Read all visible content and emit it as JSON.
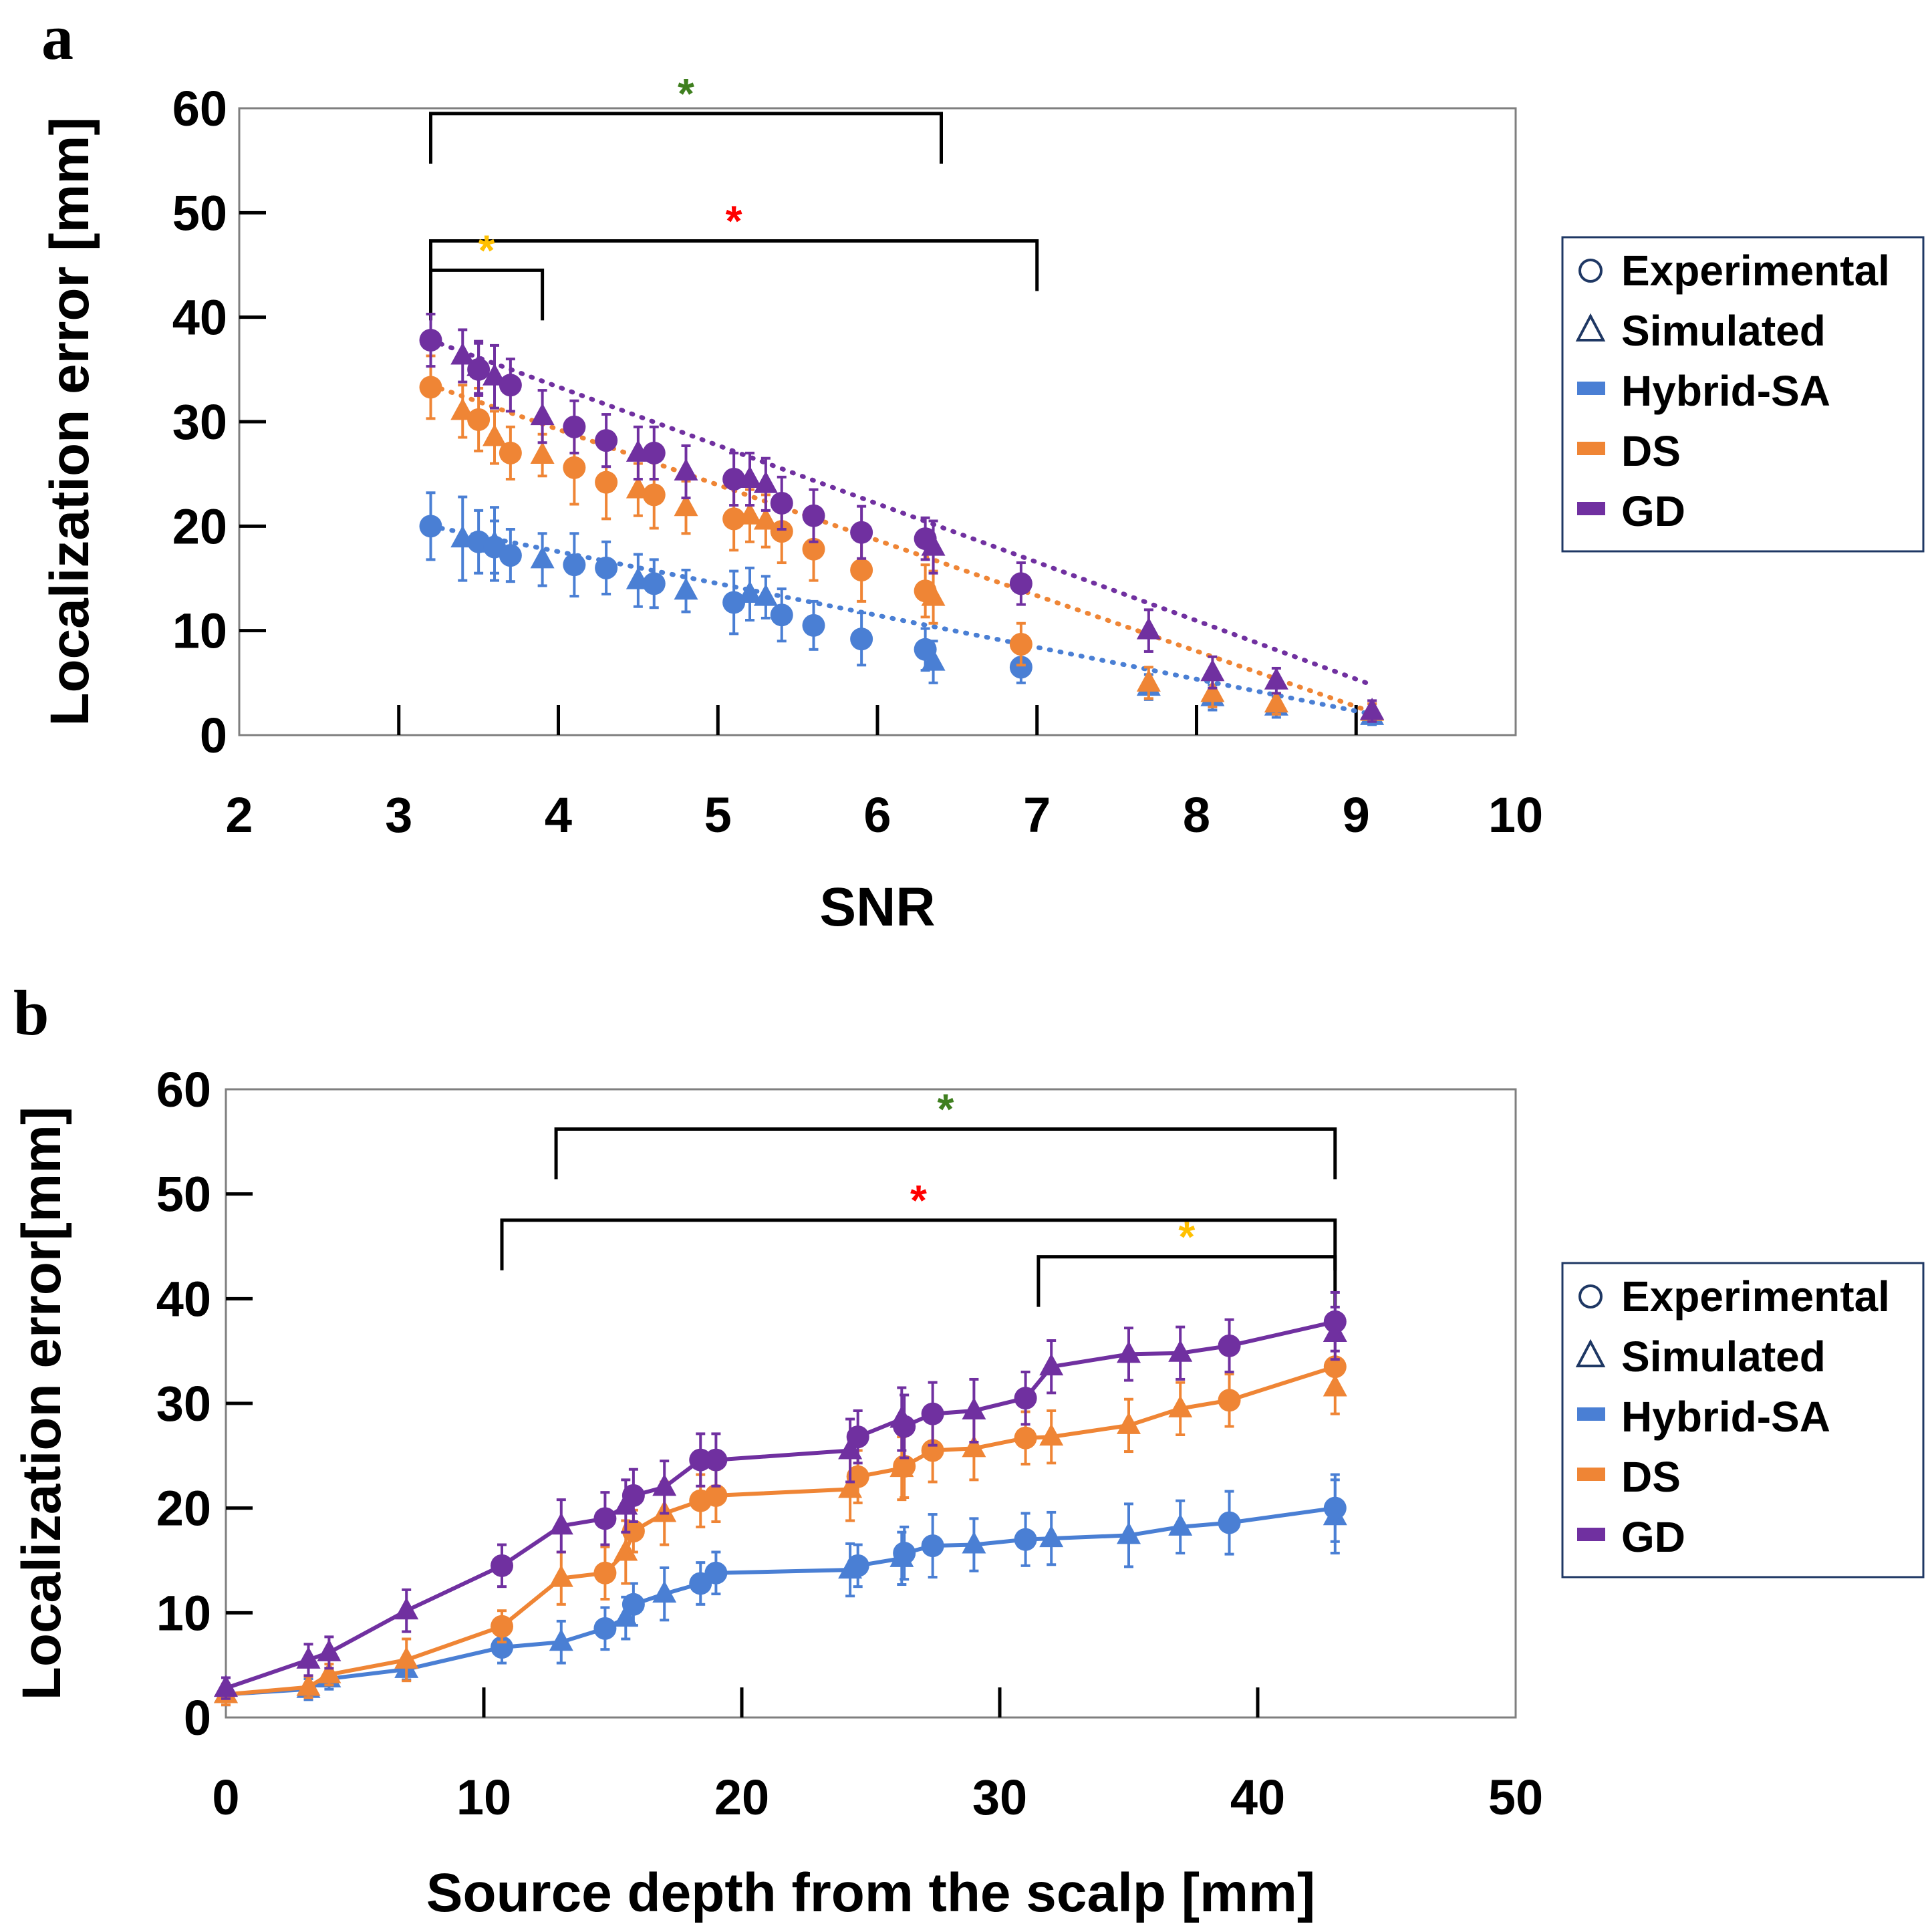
{
  "colors": {
    "hybrid": "#4a7fd4",
    "ds": "#ef8535",
    "gd": "#7030a0",
    "green_star": "#3f7f1f",
    "red_star": "#ff0000",
    "yellow_star": "#ffc000"
  },
  "legend": {
    "experimental": "Experimental",
    "simulated": "Simulated",
    "hybrid": "Hybrid-SA",
    "ds": "DS",
    "gd": "GD",
    "circle_glyph": "○",
    "triangle_glyph": "△"
  },
  "chart_data": [
    {
      "panel": "a",
      "type": "scatter",
      "xlabel": "SNR",
      "ylabel": "Localization error [mm]",
      "xlim": [
        2,
        10
      ],
      "ylim": [
        0,
        60
      ],
      "xticks": [
        "2",
        "3",
        "4",
        "5",
        "6",
        "7",
        "8",
        "9",
        "10"
      ],
      "yticks": [
        "0",
        "10",
        "20",
        "30",
        "40",
        "50",
        "60"
      ],
      "connector": "dotted",
      "significance": [
        {
          "x1": 3.2,
          "x2": 6.4,
          "y": 59.5,
          "label": "*",
          "color": "green"
        },
        {
          "x1": 3.2,
          "x2": 7.0,
          "y": 47.3,
          "label": "*",
          "color": "red"
        },
        {
          "x1": 3.2,
          "x2": 3.9,
          "y": 44.5,
          "label": "*",
          "color": "yellow"
        }
      ],
      "series": [
        {
          "name": "Hybrid-SA",
          "color": "hybrid",
          "trend": [
            [
              3.2,
              20
            ],
            [
              9.1,
              2
            ]
          ],
          "experimental": [
            [
              3.2,
              20,
              3.2
            ],
            [
              3.5,
              18.5,
              3
            ],
            [
              3.6,
              18,
              2.5
            ],
            [
              3.7,
              17.2,
              2.5
            ],
            [
              4.1,
              16.3,
              3
            ],
            [
              4.3,
              16,
              2.5
            ],
            [
              4.6,
              14.5,
              2.3
            ],
            [
              5.1,
              12.7,
              3
            ],
            [
              5.4,
              11.5,
              2.5
            ],
            [
              5.6,
              10.5,
              2.3
            ],
            [
              5.9,
              9.2,
              2.5
            ],
            [
              6.3,
              8.2,
              2
            ],
            [
              6.9,
              6.5,
              1.5
            ]
          ],
          "simulated": [
            [
              3.4,
              18.8,
              4
            ],
            [
              3.6,
              18.3,
              3.5
            ],
            [
              3.9,
              16.8,
              2.5
            ],
            [
              4.5,
              14.8,
              2.5
            ],
            [
              4.8,
              13.8,
              2
            ],
            [
              5.2,
              13.5,
              2.5
            ],
            [
              5.3,
              13.2,
              2
            ],
            [
              6.35,
              7,
              2
            ],
            [
              7.7,
              4.6,
              1.2
            ],
            [
              8.1,
              3.6,
              1.2
            ],
            [
              8.5,
              2.7,
              1
            ],
            [
              9.1,
              1.8,
              0.8
            ]
          ]
        },
        {
          "name": "DS",
          "color": "ds",
          "trend": [
            [
              3.2,
              33.5
            ],
            [
              9.1,
              2.2
            ]
          ],
          "experimental": [
            [
              3.2,
              33.3,
              3
            ],
            [
              3.5,
              30.2,
              3
            ],
            [
              3.7,
              27,
              2.5
            ],
            [
              4.1,
              25.6,
              3.5
            ],
            [
              4.3,
              24.2,
              3.5
            ],
            [
              4.6,
              23,
              3.2
            ],
            [
              5.1,
              20.7,
              3
            ],
            [
              5.4,
              19.5,
              3
            ],
            [
              5.6,
              17.8,
              3
            ],
            [
              5.9,
              15.8,
              3
            ],
            [
              6.3,
              13.8,
              2.5
            ],
            [
              6.9,
              8.7,
              2
            ]
          ],
          "simulated": [
            [
              3.4,
              31,
              2.5
            ],
            [
              3.6,
              28.5,
              2.5
            ],
            [
              3.9,
              26.8,
              2
            ],
            [
              4.5,
              23.5,
              2.5
            ],
            [
              4.8,
              21.8,
              2.5
            ],
            [
              5.2,
              21,
              2.5
            ],
            [
              5.3,
              20.5,
              2.5
            ],
            [
              6.35,
              13.2,
              2.5
            ],
            [
              7.7,
              5,
              1.5
            ],
            [
              8.1,
              4,
              1.3
            ],
            [
              8.5,
              3,
              1
            ],
            [
              9.1,
              2.2,
              0.8
            ]
          ]
        },
        {
          "name": "GD",
          "color": "gd",
          "trend": [
            [
              3.2,
              37.8
            ],
            [
              9.1,
              4.8
            ]
          ],
          "experimental": [
            [
              3.2,
              37.8,
              2.5
            ],
            [
              3.5,
              35,
              2.5
            ],
            [
              3.7,
              33.5,
              2.5
            ],
            [
              4.1,
              29.5,
              2.5
            ],
            [
              4.3,
              28.2,
              2.5
            ],
            [
              4.6,
              27,
              2.5
            ],
            [
              5.1,
              24.5,
              2.5
            ],
            [
              5.4,
              22.2,
              2.5
            ],
            [
              5.6,
              21,
              2.5
            ],
            [
              5.9,
              19.4,
              2.5
            ],
            [
              6.3,
              18.8,
              2
            ],
            [
              6.9,
              14.5,
              2
            ]
          ],
          "simulated": [
            [
              3.4,
              36.3,
              2.5
            ],
            [
              3.5,
              35.2,
              2.5
            ],
            [
              3.6,
              34.3,
              3
            ],
            [
              3.9,
              30.5,
              2.5
            ],
            [
              4.5,
              27,
              2.5
            ],
            [
              4.8,
              25.2,
              2.5
            ],
            [
              5.2,
              24.5,
              2.5
            ],
            [
              5.3,
              24,
              2.5
            ],
            [
              6.35,
              18,
              2.5
            ],
            [
              7.7,
              10,
              2
            ],
            [
              8.1,
              6,
              1.5
            ],
            [
              8.5,
              5.2,
              1.2
            ],
            [
              9.1,
              2.3,
              1
            ]
          ]
        }
      ]
    },
    {
      "panel": "b",
      "type": "line",
      "xlabel": "Source depth from the scalp [mm]",
      "ylabel": "Localization error[mm]",
      "xlim": [
        0,
        50
      ],
      "ylim": [
        0,
        60
      ],
      "xticks": [
        "0",
        "10",
        "20",
        "30",
        "40",
        "50"
      ],
      "yticks": [
        "0",
        "10",
        "20",
        "30",
        "40",
        "50",
        "60"
      ],
      "connector": "solid",
      "significance": [
        {
          "x1": 12.8,
          "x2": 43,
          "y": 56.2,
          "label": "*",
          "color": "green"
        },
        {
          "x1": 10.7,
          "x2": 43,
          "y": 47.5,
          "label": "*",
          "color": "red"
        },
        {
          "x1": 31.5,
          "x2": 43,
          "y": 44,
          "label": "*",
          "color": "yellow"
        }
      ],
      "series": [
        {
          "name": "Hybrid-SA",
          "color": "hybrid",
          "experimental": [
            [
              10.7,
              6.7,
              1.5
            ],
            [
              14.7,
              8.5,
              2
            ],
            [
              15.8,
              10.8,
              2
            ],
            [
              18.4,
              12.8,
              2
            ],
            [
              19,
              13.8,
              2
            ],
            [
              24.5,
              14.5,
              2
            ],
            [
              26.3,
              15.7,
              2.5
            ],
            [
              27.4,
              16.4,
              3
            ],
            [
              31,
              17,
              2.5
            ],
            [
              38.9,
              18.6,
              3
            ],
            [
              43,
              20,
              3.2
            ]
          ],
          "simulated": [
            [
              0,
              2.2,
              1
            ],
            [
              3.2,
              2.7,
              1
            ],
            [
              4,
              3.7,
              1
            ],
            [
              7,
              4.6,
              1
            ],
            [
              13,
              7.2,
              2
            ],
            [
              15.5,
              9.5,
              2
            ],
            [
              17,
              11.8,
              2.5
            ],
            [
              24.2,
              14.1,
              2.5
            ],
            [
              26.2,
              15.2,
              2.5
            ],
            [
              29,
              16.5,
              2.5
            ],
            [
              32,
              17.1,
              2.5
            ],
            [
              35,
              17.4,
              3
            ],
            [
              37,
              18.2,
              2.5
            ],
            [
              43,
              19.2,
              3.5
            ]
          ]
        },
        {
          "name": "DS",
          "color": "ds",
          "experimental": [
            [
              10.7,
              8.7,
              1.5
            ],
            [
              14.7,
              13.8,
              2.5
            ],
            [
              15.8,
              17.8,
              2
            ],
            [
              18.4,
              20.7,
              2.5
            ],
            [
              19,
              21.2,
              2.5
            ],
            [
              24.5,
              23,
              2.5
            ],
            [
              26.3,
              24,
              3
            ],
            [
              27.4,
              25.5,
              3
            ],
            [
              31,
              26.7,
              2.5
            ],
            [
              38.9,
              30.3,
              2.5
            ],
            [
              43,
              33.5,
              2.5
            ]
          ],
          "simulated": [
            [
              0,
              2.2,
              1
            ],
            [
              3.2,
              2.9,
              1
            ],
            [
              4,
              4.1,
              1
            ],
            [
              7,
              5.5,
              2
            ],
            [
              13,
              13.3,
              2.5
            ],
            [
              15.5,
              15.8,
              3
            ],
            [
              17,
              19.5,
              3
            ],
            [
              24.2,
              21.8,
              3
            ],
            [
              26.2,
              23.8,
              3
            ],
            [
              29,
              25.7,
              3
            ],
            [
              32,
              26.8,
              2.5
            ],
            [
              35,
              27.9,
              2.5
            ],
            [
              37,
              29.5,
              2.5
            ],
            [
              43,
              31.5,
              2.5
            ]
          ]
        },
        {
          "name": "GD",
          "color": "gd",
          "experimental": [
            [
              10.7,
              14.5,
              2
            ],
            [
              14.7,
              19,
              2.5
            ],
            [
              15.8,
              21.2,
              2.5
            ],
            [
              18.4,
              24.6,
              2.5
            ],
            [
              19,
              24.6,
              2.5
            ],
            [
              24.5,
              26.8,
              2.5
            ],
            [
              26.3,
              27.8,
              3
            ],
            [
              27.4,
              29,
              3
            ],
            [
              31,
              30.5,
              2.5
            ],
            [
              38.9,
              35.5,
              2.5
            ],
            [
              43,
              37.8,
              2.8
            ]
          ],
          "simulated": [
            [
              0,
              2.8,
              1
            ],
            [
              3.2,
              5.5,
              1.5
            ],
            [
              4,
              6.2,
              1.5
            ],
            [
              7,
              10.2,
              2
            ],
            [
              13,
              18.3,
              2.5
            ],
            [
              15.5,
              20.2,
              2.5
            ],
            [
              17,
              22,
              2.5
            ],
            [
              24.2,
              25.5,
              3
            ],
            [
              26.2,
              28.5,
              3
            ],
            [
              29,
              29.3,
              3
            ],
            [
              32,
              33.5,
              2.5
            ],
            [
              35,
              34.7,
              2.5
            ],
            [
              37,
              34.8,
              2.5
            ],
            [
              43,
              36.7,
              2.5
            ]
          ]
        }
      ]
    }
  ]
}
